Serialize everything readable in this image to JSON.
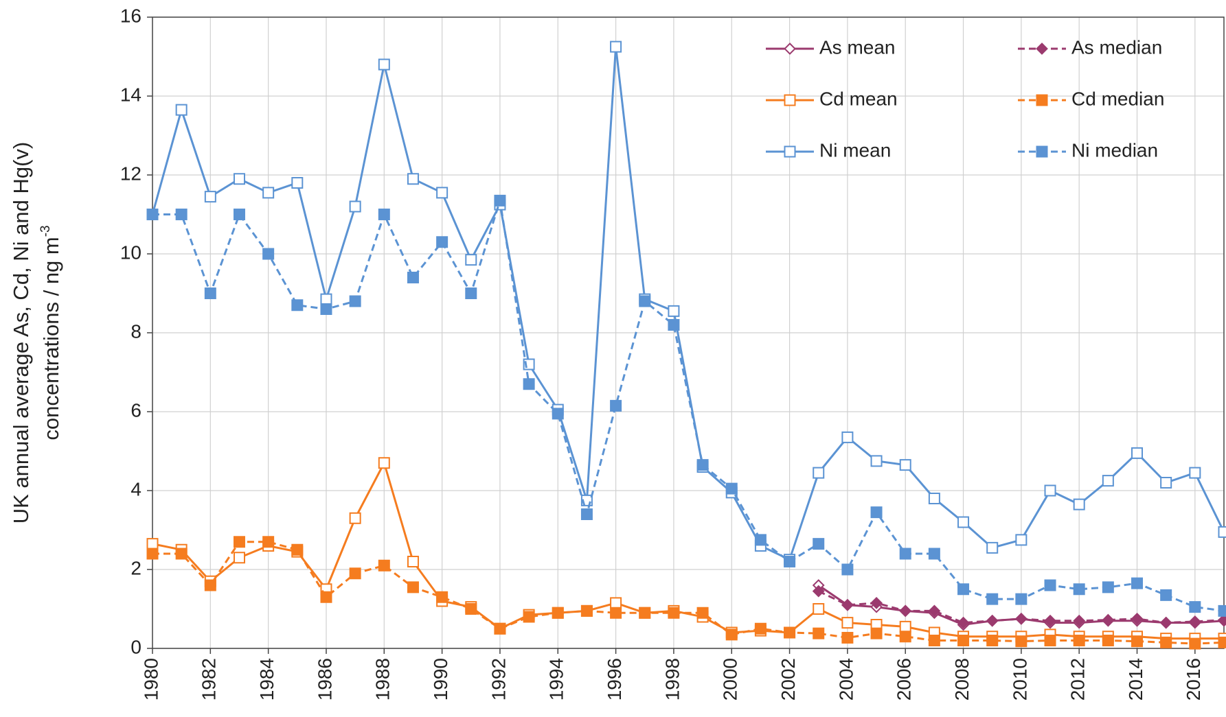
{
  "chart_data": {
    "type": "line",
    "ylabel": [
      "UK annual average As, Cd, Ni and Hg(v)",
      "concentrations / ng m"
    ],
    "ylabel_exponent": "-3",
    "x": [
      1980,
      1981,
      1982,
      1983,
      1984,
      1985,
      1986,
      1987,
      1988,
      1989,
      1990,
      1991,
      1992,
      1993,
      1994,
      1995,
      1996,
      1997,
      1998,
      1999,
      2000,
      2001,
      2002,
      2003,
      2004,
      2005,
      2006,
      2007,
      2008,
      2009,
      2010,
      2011,
      2012,
      2013,
      2014,
      2015,
      2016,
      2017
    ],
    "xlim": [
      1980,
      2017
    ],
    "xticks": [
      1980,
      1982,
      1984,
      1986,
      1988,
      1990,
      1992,
      1994,
      1996,
      1998,
      2000,
      2002,
      2004,
      2006,
      2008,
      2010,
      2012,
      2014,
      2016
    ],
    "ylim": [
      0,
      16
    ],
    "yticks": [
      0,
      2,
      4,
      6,
      8,
      10,
      12,
      14,
      16
    ],
    "grid": true,
    "legend": "upper right",
    "series": [
      {
        "name": "As mean",
        "color": "#9b3a6e",
        "marker": "diamond",
        "filled": false,
        "dashed": false,
        "values": [
          null,
          null,
          null,
          null,
          null,
          null,
          null,
          null,
          null,
          null,
          null,
          null,
          null,
          null,
          null,
          null,
          null,
          null,
          null,
          null,
          null,
          null,
          null,
          1.6,
          1.1,
          1.05,
          0.95,
          0.9,
          0.6,
          0.7,
          0.75,
          0.65,
          0.65,
          0.7,
          0.7,
          0.65,
          0.65,
          0.7
        ]
      },
      {
        "name": "As median",
        "color": "#9b3a6e",
        "marker": "diamond",
        "filled": true,
        "dashed": true,
        "values": [
          null,
          null,
          null,
          null,
          null,
          null,
          null,
          null,
          null,
          null,
          null,
          null,
          null,
          null,
          null,
          null,
          null,
          null,
          null,
          null,
          null,
          null,
          null,
          1.45,
          1.1,
          1.15,
          0.95,
          0.95,
          0.65,
          0.7,
          0.75,
          0.7,
          0.7,
          0.72,
          0.75,
          0.65,
          0.68,
          0.72
        ]
      },
      {
        "name": "Cd mean",
        "color": "#f57c1f",
        "marker": "square",
        "filled": false,
        "dashed": false,
        "values": [
          2.65,
          2.5,
          1.7,
          2.3,
          2.6,
          2.45,
          1.5,
          3.3,
          4.7,
          2.2,
          1.2,
          1.05,
          0.5,
          0.85,
          0.9,
          0.95,
          1.15,
          0.9,
          0.95,
          0.8,
          0.4,
          0.45,
          0.4,
          1.0,
          0.65,
          0.6,
          0.55,
          0.4,
          0.3,
          0.3,
          0.3,
          0.35,
          0.3,
          0.3,
          0.3,
          0.25,
          0.25,
          0.25
        ]
      },
      {
        "name": "Cd median",
        "color": "#f57c1f",
        "marker": "square",
        "filled": true,
        "dashed": true,
        "values": [
          2.4,
          2.4,
          1.6,
          2.7,
          2.7,
          2.5,
          1.3,
          1.9,
          2.1,
          1.55,
          1.3,
          1.0,
          0.5,
          0.8,
          0.9,
          0.95,
          0.9,
          0.9,
          0.9,
          0.9,
          0.35,
          0.5,
          0.4,
          0.38,
          0.27,
          0.38,
          0.3,
          0.2,
          0.2,
          0.2,
          0.18,
          0.2,
          0.2,
          0.2,
          0.18,
          0.15,
          0.12,
          0.15
        ]
      },
      {
        "name": "Ni mean",
        "color": "#5b93d3",
        "marker": "square",
        "filled": false,
        "dashed": false,
        "values": [
          11.0,
          13.65,
          11.45,
          11.9,
          11.55,
          11.8,
          8.85,
          11.2,
          14.8,
          11.9,
          11.55,
          9.85,
          11.25,
          7.2,
          6.05,
          3.75,
          15.25,
          8.85,
          8.55,
          4.6,
          3.95,
          2.6,
          2.25,
          4.45,
          5.35,
          4.75,
          4.65,
          3.8,
          3.2,
          2.55,
          2.75,
          4.0,
          3.65,
          4.25,
          4.95,
          4.2,
          4.45,
          2.95
        ]
      },
      {
        "name": "Ni median",
        "color": "#5b93d3",
        "marker": "square",
        "filled": true,
        "dashed": true,
        "values": [
          11.0,
          11.0,
          9.0,
          11.0,
          10.0,
          8.7,
          8.6,
          8.8,
          11.0,
          9.4,
          10.3,
          9.0,
          11.35,
          6.7,
          5.95,
          3.4,
          6.15,
          8.8,
          8.2,
          4.65,
          4.05,
          2.75,
          2.2,
          2.65,
          2.0,
          3.45,
          2.4,
          2.4,
          1.5,
          1.25,
          1.25,
          1.6,
          1.5,
          1.55,
          1.65,
          1.35,
          1.05,
          0.95
        ]
      }
    ]
  }
}
